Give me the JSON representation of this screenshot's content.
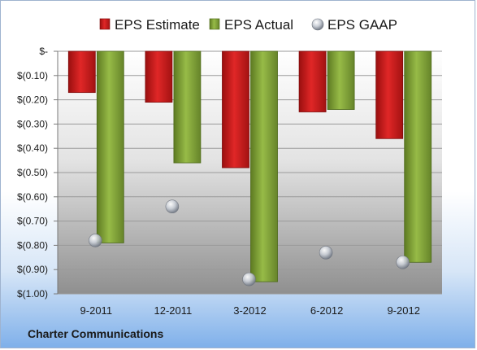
{
  "chart_data": {
    "type": "bar",
    "categories": [
      "9-2011",
      "12-2011",
      "3-2012",
      "6-2012",
      "9-2012"
    ],
    "series": [
      {
        "name": "EPS Estimate",
        "values": [
          -0.17,
          -0.21,
          -0.48,
          -0.25,
          -0.36
        ],
        "color": "#cc1f1f"
      },
      {
        "name": "EPS Actual",
        "values": [
          -0.79,
          -0.46,
          -0.95,
          -0.24,
          -0.87
        ],
        "color": "#86a83a"
      },
      {
        "name": "EPS GAAP",
        "values": [
          -0.78,
          -0.64,
          -0.94,
          -0.83,
          -0.87
        ],
        "color": "#b9bfc9",
        "marker": "sphere"
      }
    ],
    "yticks": [
      "$-",
      "$(0.10)",
      "$(0.20)",
      "$(0.30)",
      "$(0.40)",
      "$(0.50)",
      "$(0.60)",
      "$(0.70)",
      "$(0.80)",
      "$(0.90)",
      "$(1.00)"
    ],
    "ylim": [
      -1.0,
      0
    ],
    "grid": true,
    "legend": "top"
  },
  "caption": "Charter Communications"
}
